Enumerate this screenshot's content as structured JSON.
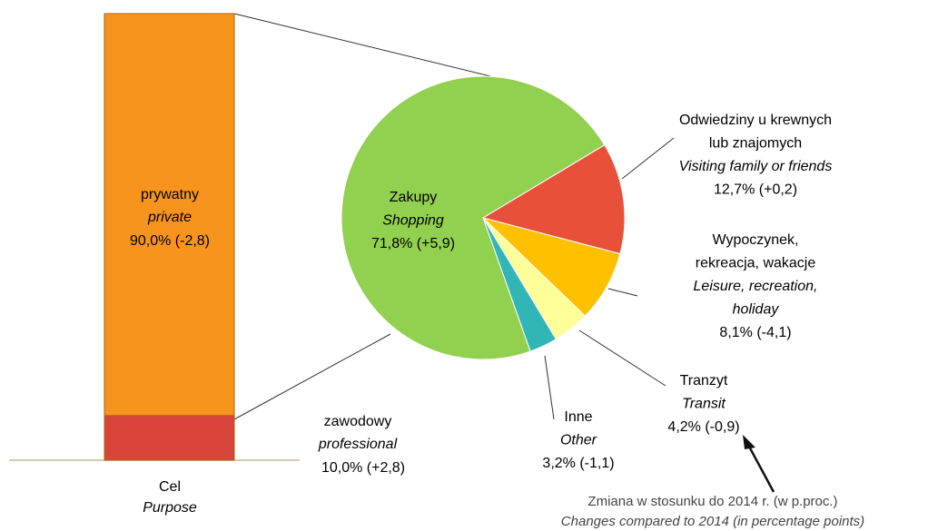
{
  "chart_data": [
    {
      "type": "bar",
      "xlabel": "Cel",
      "xlabel_en": "Purpose",
      "ylim": [
        0,
        100
      ],
      "series": [
        {
          "name": "zawodowy",
          "name_en": "professional",
          "color": "#d9443a",
          "values": [
            10.0
          ],
          "value_labels": [
            "10,0% (+2,8)"
          ]
        },
        {
          "name": "prywatny",
          "name_en": "private",
          "color": "#f7941d",
          "values": [
            90.0
          ],
          "value_labels": [
            "90,0% (-2,8)"
          ]
        }
      ]
    },
    {
      "type": "pie",
      "labels": [
        [
          "Zakupy"
        ],
        [
          "Odwiedziny u krewnych",
          "lub znajomych"
        ],
        [
          "Wypoczynek,",
          "rekreacja, wakacje"
        ],
        [
          "Tranzyt"
        ],
        [
          "Inne"
        ]
      ],
      "labels_en": [
        [
          "Shopping"
        ],
        [
          "Visiting family or friends"
        ],
        [
          "Leisure, recreation,",
          "holiday"
        ],
        [
          "Transit"
        ],
        [
          "Other"
        ]
      ],
      "values": [
        71.8,
        12.7,
        8.1,
        4.2,
        3.2
      ],
      "value_labels": [
        "71,8% (+5,9)",
        "12,7% (+0,2)",
        "8,1% (-4,1)",
        "4,2% (-0,9)",
        "3,2% (-1,1)"
      ],
      "colors": [
        "#92d050",
        "#e8503a",
        "#ffc000",
        "#ffff99",
        "#31b5b5"
      ],
      "annotation": "Zmiana w stosunku do 2014 r. (w p.proc.)",
      "annotation_en": "Changes compared to 2014 (in percentage points)"
    }
  ]
}
